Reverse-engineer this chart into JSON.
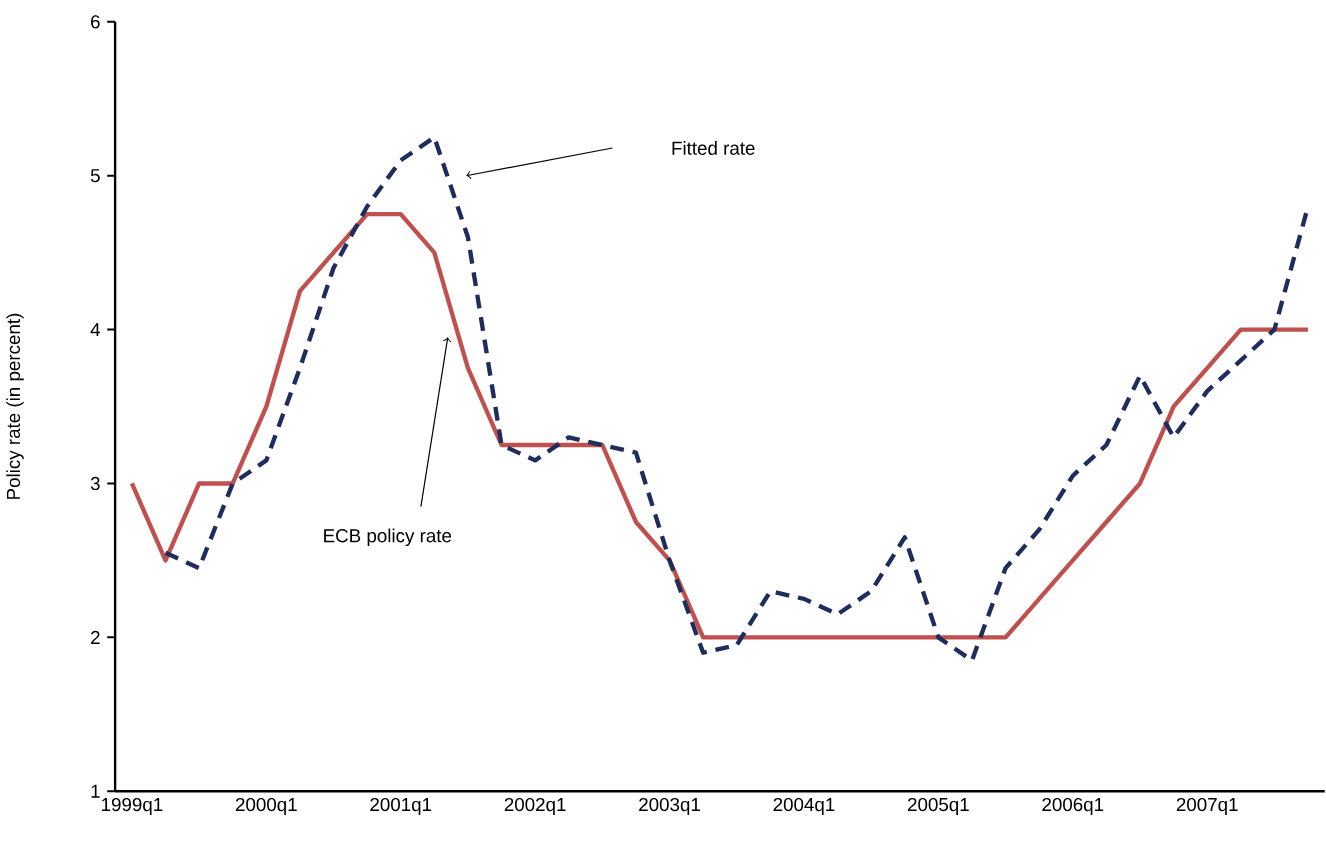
{
  "chart_data": {
    "type": "line",
    "ylabel": "Policy rate (in percent)",
    "categories": [
      "1999q1",
      null,
      null,
      null,
      "2000q1",
      null,
      null,
      null,
      "2001q1",
      null,
      null,
      null,
      "2002q1",
      null,
      null,
      null,
      "2003q1",
      null,
      null,
      null,
      "2004q1",
      null,
      null,
      null,
      "2005q1",
      null,
      null,
      null,
      "2006q1",
      null,
      null,
      null,
      "2007q1",
      null,
      null,
      null
    ],
    "annotations": [
      "ECB policy rate",
      "Fitted rate"
    ],
    "ylim": [
      1,
      6
    ],
    "yticks": [
      1,
      2,
      3,
      4,
      5,
      6
    ],
    "series": [
      {
        "color": "#c0504d",
        "line_style": "solid",
        "values": [
          3.0,
          2.5,
          3.0,
          3.0,
          3.5,
          4.25,
          4.5,
          4.75,
          4.75,
          4.5,
          3.75,
          3.25,
          3.25,
          3.25,
          3.25,
          2.75,
          2.5,
          2.0,
          2.0,
          2.0,
          2.0,
          2.0,
          2.0,
          2.0,
          2.0,
          2.0,
          2.0,
          2.25,
          2.5,
          2.75,
          3.0,
          3.5,
          3.75,
          4.0,
          4.0,
          4.0
        ]
      },
      {
        "color": "#1f2d5e",
        "line_style": "dashed",
        "values": [
          null,
          2.55,
          2.45,
          3.0,
          3.15,
          3.75,
          4.4,
          4.8,
          5.1,
          5.25,
          4.6,
          3.25,
          3.15,
          3.3,
          3.25,
          3.2,
          2.5,
          1.9,
          1.95,
          2.3,
          2.25,
          2.15,
          2.3,
          2.65,
          2.0,
          1.85,
          2.45,
          2.7,
          3.05,
          3.25,
          3.7,
          3.3,
          3.6,
          3.8,
          4.0,
          4.8
        ]
      }
    ]
  }
}
